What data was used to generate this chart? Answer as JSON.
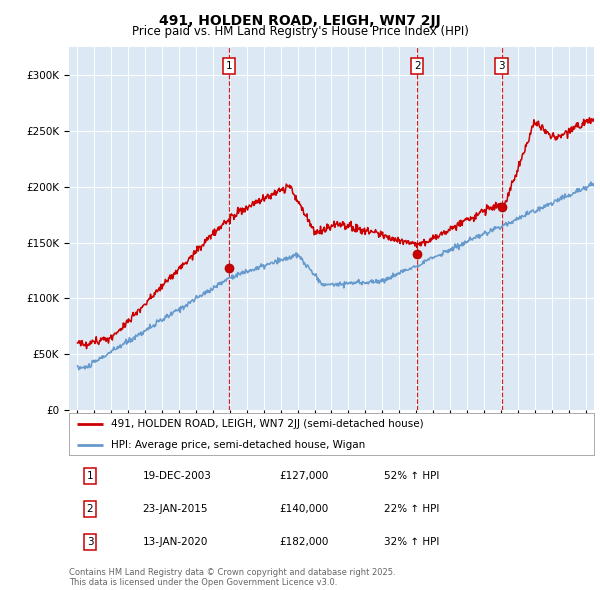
{
  "title": "491, HOLDEN ROAD, LEIGH, WN7 2JJ",
  "subtitle": "Price paid vs. HM Land Registry's House Price Index (HPI)",
  "legend_line1": "491, HOLDEN ROAD, LEIGH, WN7 2JJ (semi-detached house)",
  "legend_line2": "HPI: Average price, semi-detached house, Wigan",
  "transactions": [
    {
      "num": 1,
      "date": "19-DEC-2003",
      "price": 127000,
      "pct": "52%",
      "dir": "↑",
      "x_year": 2003.96
    },
    {
      "num": 2,
      "date": "23-JAN-2015",
      "price": 140000,
      "pct": "22%",
      "dir": "↑",
      "x_year": 2015.06
    },
    {
      "num": 3,
      "date": "13-JAN-2020",
      "price": 182000,
      "pct": "32%",
      "dir": "↑",
      "x_year": 2020.04
    }
  ],
  "copyright_text": "Contains HM Land Registry data © Crown copyright and database right 2025.\nThis data is licensed under the Open Government Licence v3.0.",
  "bg_color": "#dce9f5",
  "red_line_color": "#cc0000",
  "blue_line_color": "#6699cc",
  "dashed_line_color": "#cc0000",
  "ylim": [
    0,
    320000
  ],
  "xlim_start": 1994.5,
  "xlim_end": 2025.5
}
